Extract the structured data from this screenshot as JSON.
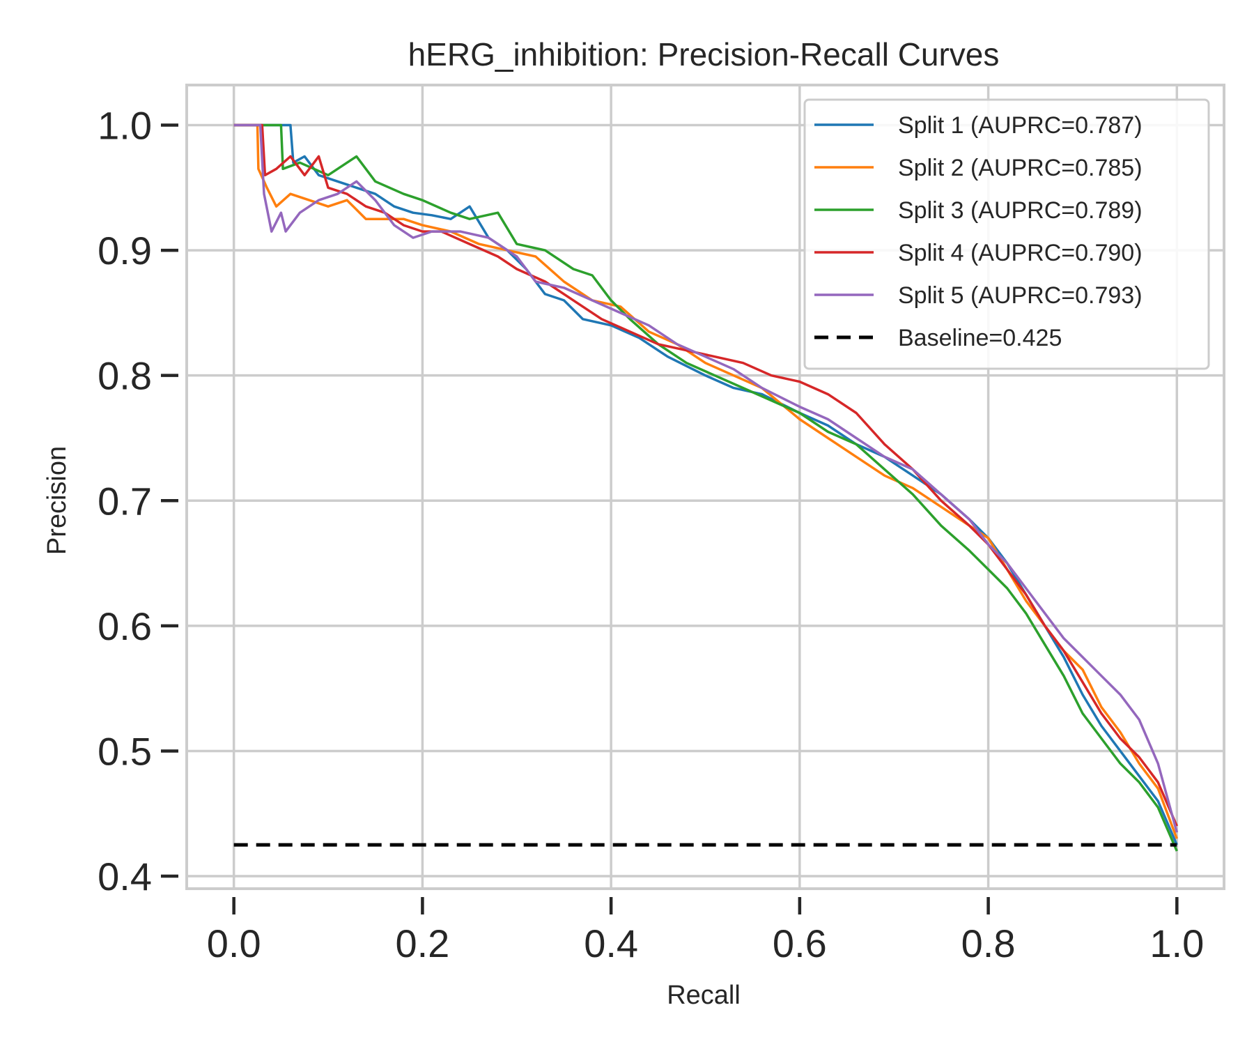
{
  "chart_data": {
    "type": "line",
    "title": "hERG_inhibition: Precision-Recall Curves",
    "xlabel": "Recall",
    "ylabel": "Precision",
    "xlim": [
      -0.05,
      1.05
    ],
    "ylim": [
      0.39,
      1.032
    ],
    "xticks": [
      0.0,
      0.2,
      0.4,
      0.6,
      0.8,
      1.0
    ],
    "xtick_labels": [
      "0.0",
      "0.2",
      "0.4",
      "0.6",
      "0.8",
      "1.0"
    ],
    "yticks": [
      0.4,
      0.5,
      0.6,
      0.7,
      0.8,
      0.9,
      1.0
    ],
    "ytick_labels": [
      "0.4",
      "0.5",
      "0.6",
      "0.7",
      "0.8",
      "0.9",
      "1.0"
    ],
    "grid": true,
    "legend_position": "top-right",
    "series": [
      {
        "name": "Split 1 (AUPRC=0.787)",
        "color": "#1f77b4",
        "points": [
          [
            0.0,
            1.0
          ],
          [
            0.03,
            1.0
          ],
          [
            0.045,
            1.0
          ],
          [
            0.06,
            1.0
          ],
          [
            0.063,
            0.97
          ],
          [
            0.075,
            0.975
          ],
          [
            0.09,
            0.96
          ],
          [
            0.11,
            0.955
          ],
          [
            0.13,
            0.95
          ],
          [
            0.15,
            0.945
          ],
          [
            0.17,
            0.935
          ],
          [
            0.19,
            0.93
          ],
          [
            0.21,
            0.928
          ],
          [
            0.23,
            0.925
          ],
          [
            0.25,
            0.935
          ],
          [
            0.27,
            0.91
          ],
          [
            0.29,
            0.9
          ],
          [
            0.31,
            0.885
          ],
          [
            0.33,
            0.865
          ],
          [
            0.35,
            0.86
          ],
          [
            0.37,
            0.845
          ],
          [
            0.4,
            0.84
          ],
          [
            0.43,
            0.83
          ],
          [
            0.46,
            0.815
          ],
          [
            0.5,
            0.8
          ],
          [
            0.53,
            0.79
          ],
          [
            0.56,
            0.785
          ],
          [
            0.6,
            0.77
          ],
          [
            0.63,
            0.76
          ],
          [
            0.66,
            0.745
          ],
          [
            0.69,
            0.735
          ],
          [
            0.72,
            0.72
          ],
          [
            0.75,
            0.705
          ],
          [
            0.78,
            0.685
          ],
          [
            0.8,
            0.67
          ],
          [
            0.82,
            0.65
          ],
          [
            0.84,
            0.625
          ],
          [
            0.86,
            0.6
          ],
          [
            0.88,
            0.575
          ],
          [
            0.9,
            0.545
          ],
          [
            0.92,
            0.52
          ],
          [
            0.94,
            0.5
          ],
          [
            0.96,
            0.48
          ],
          [
            0.98,
            0.46
          ],
          [
            1.0,
            0.425
          ]
        ]
      },
      {
        "name": "Split 2 (AUPRC=0.785)",
        "color": "#ff7f0e",
        "points": [
          [
            0.0,
            1.0
          ],
          [
            0.025,
            1.0
          ],
          [
            0.026,
            0.965
          ],
          [
            0.035,
            0.95
          ],
          [
            0.045,
            0.935
          ],
          [
            0.06,
            0.945
          ],
          [
            0.08,
            0.94
          ],
          [
            0.1,
            0.935
          ],
          [
            0.12,
            0.94
          ],
          [
            0.14,
            0.925
          ],
          [
            0.16,
            0.925
          ],
          [
            0.18,
            0.925
          ],
          [
            0.2,
            0.92
          ],
          [
            0.23,
            0.915
          ],
          [
            0.26,
            0.905
          ],
          [
            0.29,
            0.9
          ],
          [
            0.32,
            0.895
          ],
          [
            0.35,
            0.875
          ],
          [
            0.38,
            0.86
          ],
          [
            0.41,
            0.855
          ],
          [
            0.44,
            0.835
          ],
          [
            0.47,
            0.825
          ],
          [
            0.5,
            0.81
          ],
          [
            0.53,
            0.8
          ],
          [
            0.56,
            0.79
          ],
          [
            0.6,
            0.765
          ],
          [
            0.63,
            0.75
          ],
          [
            0.66,
            0.735
          ],
          [
            0.69,
            0.72
          ],
          [
            0.72,
            0.71
          ],
          [
            0.75,
            0.695
          ],
          [
            0.78,
            0.68
          ],
          [
            0.8,
            0.67
          ],
          [
            0.82,
            0.645
          ],
          [
            0.84,
            0.62
          ],
          [
            0.86,
            0.6
          ],
          [
            0.88,
            0.58
          ],
          [
            0.9,
            0.565
          ],
          [
            0.92,
            0.535
          ],
          [
            0.94,
            0.515
          ],
          [
            0.96,
            0.49
          ],
          [
            0.98,
            0.47
          ],
          [
            1.0,
            0.43
          ]
        ]
      },
      {
        "name": "Split 3 (AUPRC=0.789)",
        "color": "#2ca02c",
        "points": [
          [
            0.0,
            1.0
          ],
          [
            0.035,
            1.0
          ],
          [
            0.05,
            1.0
          ],
          [
            0.052,
            0.965
          ],
          [
            0.07,
            0.97
          ],
          [
            0.1,
            0.96
          ],
          [
            0.13,
            0.975
          ],
          [
            0.15,
            0.955
          ],
          [
            0.18,
            0.945
          ],
          [
            0.2,
            0.94
          ],
          [
            0.23,
            0.93
          ],
          [
            0.25,
            0.925
          ],
          [
            0.28,
            0.93
          ],
          [
            0.3,
            0.905
          ],
          [
            0.33,
            0.9
          ],
          [
            0.36,
            0.885
          ],
          [
            0.38,
            0.88
          ],
          [
            0.4,
            0.86
          ],
          [
            0.42,
            0.845
          ],
          [
            0.45,
            0.825
          ],
          [
            0.48,
            0.81
          ],
          [
            0.51,
            0.8
          ],
          [
            0.54,
            0.79
          ],
          [
            0.57,
            0.78
          ],
          [
            0.6,
            0.77
          ],
          [
            0.63,
            0.755
          ],
          [
            0.66,
            0.745
          ],
          [
            0.69,
            0.725
          ],
          [
            0.72,
            0.705
          ],
          [
            0.75,
            0.68
          ],
          [
            0.78,
            0.66
          ],
          [
            0.8,
            0.645
          ],
          [
            0.82,
            0.63
          ],
          [
            0.84,
            0.61
          ],
          [
            0.86,
            0.585
          ],
          [
            0.88,
            0.56
          ],
          [
            0.9,
            0.53
          ],
          [
            0.92,
            0.51
          ],
          [
            0.94,
            0.49
          ],
          [
            0.96,
            0.475
          ],
          [
            0.98,
            0.455
          ],
          [
            1.0,
            0.42
          ]
        ]
      },
      {
        "name": "Split 4 (AUPRC=0.790)",
        "color": "#d62728",
        "points": [
          [
            0.0,
            1.0
          ],
          [
            0.03,
            1.0
          ],
          [
            0.033,
            0.96
          ],
          [
            0.045,
            0.965
          ],
          [
            0.06,
            0.975
          ],
          [
            0.075,
            0.96
          ],
          [
            0.09,
            0.975
          ],
          [
            0.1,
            0.95
          ],
          [
            0.12,
            0.945
          ],
          [
            0.14,
            0.935
          ],
          [
            0.16,
            0.93
          ],
          [
            0.18,
            0.92
          ],
          [
            0.2,
            0.915
          ],
          [
            0.22,
            0.915
          ],
          [
            0.25,
            0.905
          ],
          [
            0.28,
            0.895
          ],
          [
            0.3,
            0.885
          ],
          [
            0.33,
            0.875
          ],
          [
            0.36,
            0.86
          ],
          [
            0.39,
            0.845
          ],
          [
            0.42,
            0.835
          ],
          [
            0.45,
            0.825
          ],
          [
            0.48,
            0.82
          ],
          [
            0.51,
            0.815
          ],
          [
            0.54,
            0.81
          ],
          [
            0.57,
            0.8
          ],
          [
            0.6,
            0.795
          ],
          [
            0.63,
            0.785
          ],
          [
            0.66,
            0.77
          ],
          [
            0.69,
            0.745
          ],
          [
            0.72,
            0.725
          ],
          [
            0.75,
            0.7
          ],
          [
            0.78,
            0.68
          ],
          [
            0.8,
            0.665
          ],
          [
            0.82,
            0.645
          ],
          [
            0.84,
            0.625
          ],
          [
            0.86,
            0.6
          ],
          [
            0.88,
            0.58
          ],
          [
            0.9,
            0.555
          ],
          [
            0.92,
            0.53
          ],
          [
            0.94,
            0.51
          ],
          [
            0.96,
            0.495
          ],
          [
            0.98,
            0.475
          ],
          [
            1.0,
            0.44
          ]
        ]
      },
      {
        "name": "Split 5 (AUPRC=0.793)",
        "color": "#9467bd",
        "points": [
          [
            0.0,
            1.0
          ],
          [
            0.028,
            1.0
          ],
          [
            0.032,
            0.945
          ],
          [
            0.04,
            0.915
          ],
          [
            0.05,
            0.93
          ],
          [
            0.055,
            0.915
          ],
          [
            0.07,
            0.93
          ],
          [
            0.09,
            0.94
          ],
          [
            0.11,
            0.945
          ],
          [
            0.13,
            0.955
          ],
          [
            0.15,
            0.94
          ],
          [
            0.17,
            0.92
          ],
          [
            0.19,
            0.91
          ],
          [
            0.21,
            0.915
          ],
          [
            0.24,
            0.915
          ],
          [
            0.27,
            0.91
          ],
          [
            0.3,
            0.895
          ],
          [
            0.32,
            0.875
          ],
          [
            0.35,
            0.87
          ],
          [
            0.38,
            0.86
          ],
          [
            0.41,
            0.85
          ],
          [
            0.44,
            0.84
          ],
          [
            0.47,
            0.825
          ],
          [
            0.5,
            0.815
          ],
          [
            0.53,
            0.805
          ],
          [
            0.56,
            0.79
          ],
          [
            0.6,
            0.775
          ],
          [
            0.63,
            0.765
          ],
          [
            0.66,
            0.75
          ],
          [
            0.69,
            0.735
          ],
          [
            0.72,
            0.725
          ],
          [
            0.75,
            0.705
          ],
          [
            0.78,
            0.685
          ],
          [
            0.8,
            0.665
          ],
          [
            0.82,
            0.65
          ],
          [
            0.84,
            0.63
          ],
          [
            0.86,
            0.61
          ],
          [
            0.88,
            0.59
          ],
          [
            0.9,
            0.575
          ],
          [
            0.92,
            0.56
          ],
          [
            0.94,
            0.545
          ],
          [
            0.96,
            0.525
          ],
          [
            0.98,
            0.49
          ],
          [
            1.0,
            0.435
          ]
        ]
      },
      {
        "name": "Baseline=0.425",
        "color": "#000000",
        "dashed": true,
        "points": [
          [
            0.0,
            0.425
          ],
          [
            1.0,
            0.425
          ]
        ]
      }
    ]
  }
}
